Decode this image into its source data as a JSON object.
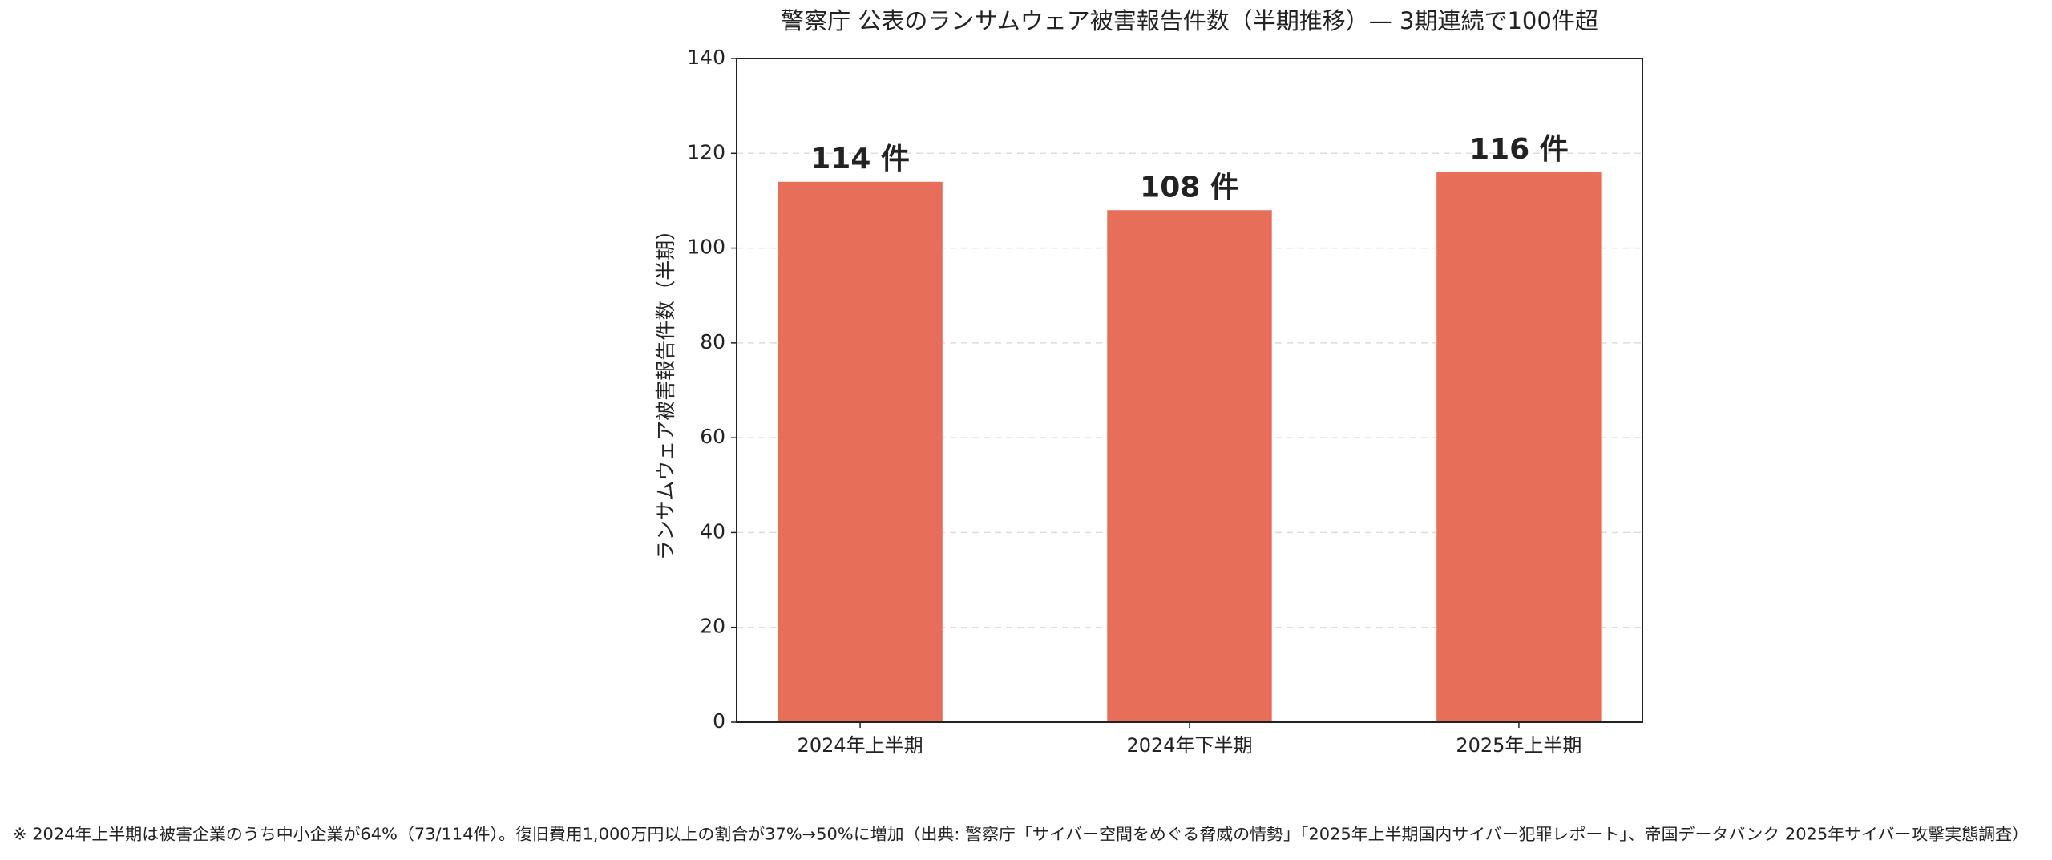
{
  "chart_data": {
    "type": "bar",
    "title": "警察庁 公表のランサムウェア被害報告件数（半期推移）— 3期連続で100件超",
    "y_label": "ランサムウェア被害報告件数（半期）",
    "categories": [
      "2024年上半期",
      "2024年下半期",
      "2025年上半期"
    ],
    "values": [
      114,
      108,
      116
    ],
    "value_labels": [
      "114 件",
      "108 件",
      "116 件"
    ],
    "color": "#e76f5a",
    "ylim": [
      0,
      140
    ],
    "yticks": [
      0,
      20,
      40,
      60,
      80,
      100,
      120,
      140
    ],
    "grid": true,
    "note": "※ 2024年上半期は被害企業のうち中小企業が64%（73/114件）。復旧費用1,000万円以上の割合が37%→50%に増加（出典: 警察庁「サイバー空間をめぐる脅威の情勢」「2025年上半期国内サイバー犯罪レポート」、帝国データバンク 2025年サイバー攻撃実態調査）"
  }
}
